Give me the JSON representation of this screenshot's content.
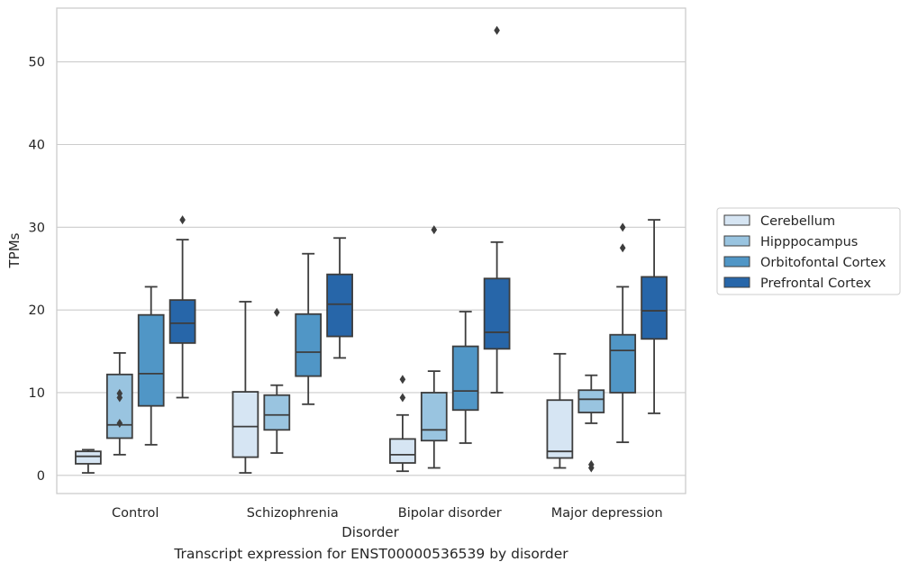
{
  "chart_data": {
    "type": "boxplot",
    "xlabel": "Disorder",
    "ylabel": "TPMs",
    "ylim": [
      -2.2,
      56.5
    ],
    "yticks": [
      0,
      10,
      20,
      30,
      40,
      50
    ],
    "grid": "horizontal",
    "legend_position": "right",
    "categories": [
      "Control",
      "Schizophrenia",
      "Bipolar disorder",
      "Major depression"
    ],
    "series": [
      {
        "name": "Cerebellum",
        "color": "#d6e5f3",
        "boxes": [
          {
            "whislo": 0.3,
            "q1": 1.4,
            "med": 2.3,
            "q3": 2.9,
            "whishi": 3.1,
            "fliers": []
          },
          {
            "whislo": 0.3,
            "q1": 2.2,
            "med": 5.9,
            "q3": 10.1,
            "whishi": 21.0,
            "fliers": []
          },
          {
            "whislo": 0.5,
            "q1": 1.5,
            "med": 2.5,
            "q3": 4.4,
            "whishi": 7.3,
            "fliers": [
              9.4,
              11.6
            ]
          },
          {
            "whislo": 0.9,
            "q1": 2.1,
            "med": 2.9,
            "q3": 9.1,
            "whishi": 14.7,
            "fliers": []
          }
        ]
      },
      {
        "name": "Hipppocampus",
        "color": "#99c4e0",
        "boxes": [
          {
            "whislo": 2.5,
            "q1": 4.5,
            "med": 6.1,
            "q3": 12.2,
            "whishi": 14.8,
            "fliers": [
              6.3,
              9.4,
              9.9
            ]
          },
          {
            "whislo": 2.7,
            "q1": 5.5,
            "med": 7.3,
            "q3": 9.7,
            "whishi": 10.9,
            "fliers": [
              19.7
            ]
          },
          {
            "whislo": 0.9,
            "q1": 4.2,
            "med": 5.5,
            "q3": 10.0,
            "whishi": 12.6,
            "fliers": [
              29.7
            ]
          },
          {
            "whislo": 6.3,
            "q1": 7.6,
            "med": 9.2,
            "q3": 10.3,
            "whishi": 12.1,
            "fliers": [
              0.9,
              1.3
            ]
          }
        ]
      },
      {
        "name": "Orbitofontal Cortex",
        "color": "#5096c6",
        "boxes": [
          {
            "whislo": 3.7,
            "q1": 8.4,
            "med": 12.3,
            "q3": 19.4,
            "whishi": 22.8,
            "fliers": []
          },
          {
            "whislo": 8.6,
            "q1": 12.0,
            "med": 14.9,
            "q3": 19.5,
            "whishi": 26.8,
            "fliers": []
          },
          {
            "whislo": 3.9,
            "q1": 7.9,
            "med": 10.2,
            "q3": 15.6,
            "whishi": 19.8,
            "fliers": []
          },
          {
            "whislo": 4.0,
            "q1": 10.0,
            "med": 15.1,
            "q3": 17.0,
            "whishi": 22.8,
            "fliers": [
              27.5,
              30.0
            ]
          }
        ]
      },
      {
        "name": "Prefrontal Cortex",
        "color": "#2766a9",
        "boxes": [
          {
            "whislo": 9.4,
            "q1": 16.0,
            "med": 18.4,
            "q3": 21.2,
            "whishi": 28.5,
            "fliers": [
              30.9
            ]
          },
          {
            "whislo": 14.2,
            "q1": 16.8,
            "med": 20.7,
            "q3": 24.3,
            "whishi": 28.7,
            "fliers": []
          },
          {
            "whislo": 10.0,
            "q1": 15.3,
            "med": 17.3,
            "q3": 23.8,
            "whishi": 28.2,
            "fliers": [
              53.8
            ]
          },
          {
            "whislo": 7.5,
            "q1": 16.5,
            "med": 19.9,
            "q3": 24.0,
            "whishi": 30.9,
            "fliers": []
          }
        ]
      }
    ]
  },
  "caption": "Transcript expression for ENST00000536539 by disorder"
}
